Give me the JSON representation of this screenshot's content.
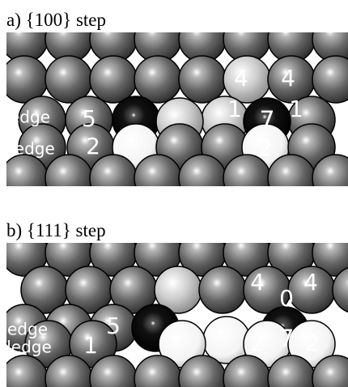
{
  "panels": [
    {
      "title": "a)  {100} step",
      "labels": [
        "edge",
        "ledge",
        "5",
        "2",
        "4",
        "4",
        "1",
        "7",
        "1",
        "2"
      ]
    },
    {
      "title": "b)  {111} step",
      "labels": [
        "edge",
        "ledge",
        "5",
        "1",
        "4",
        "0",
        "4",
        "2",
        "7",
        "2"
      ]
    }
  ]
}
